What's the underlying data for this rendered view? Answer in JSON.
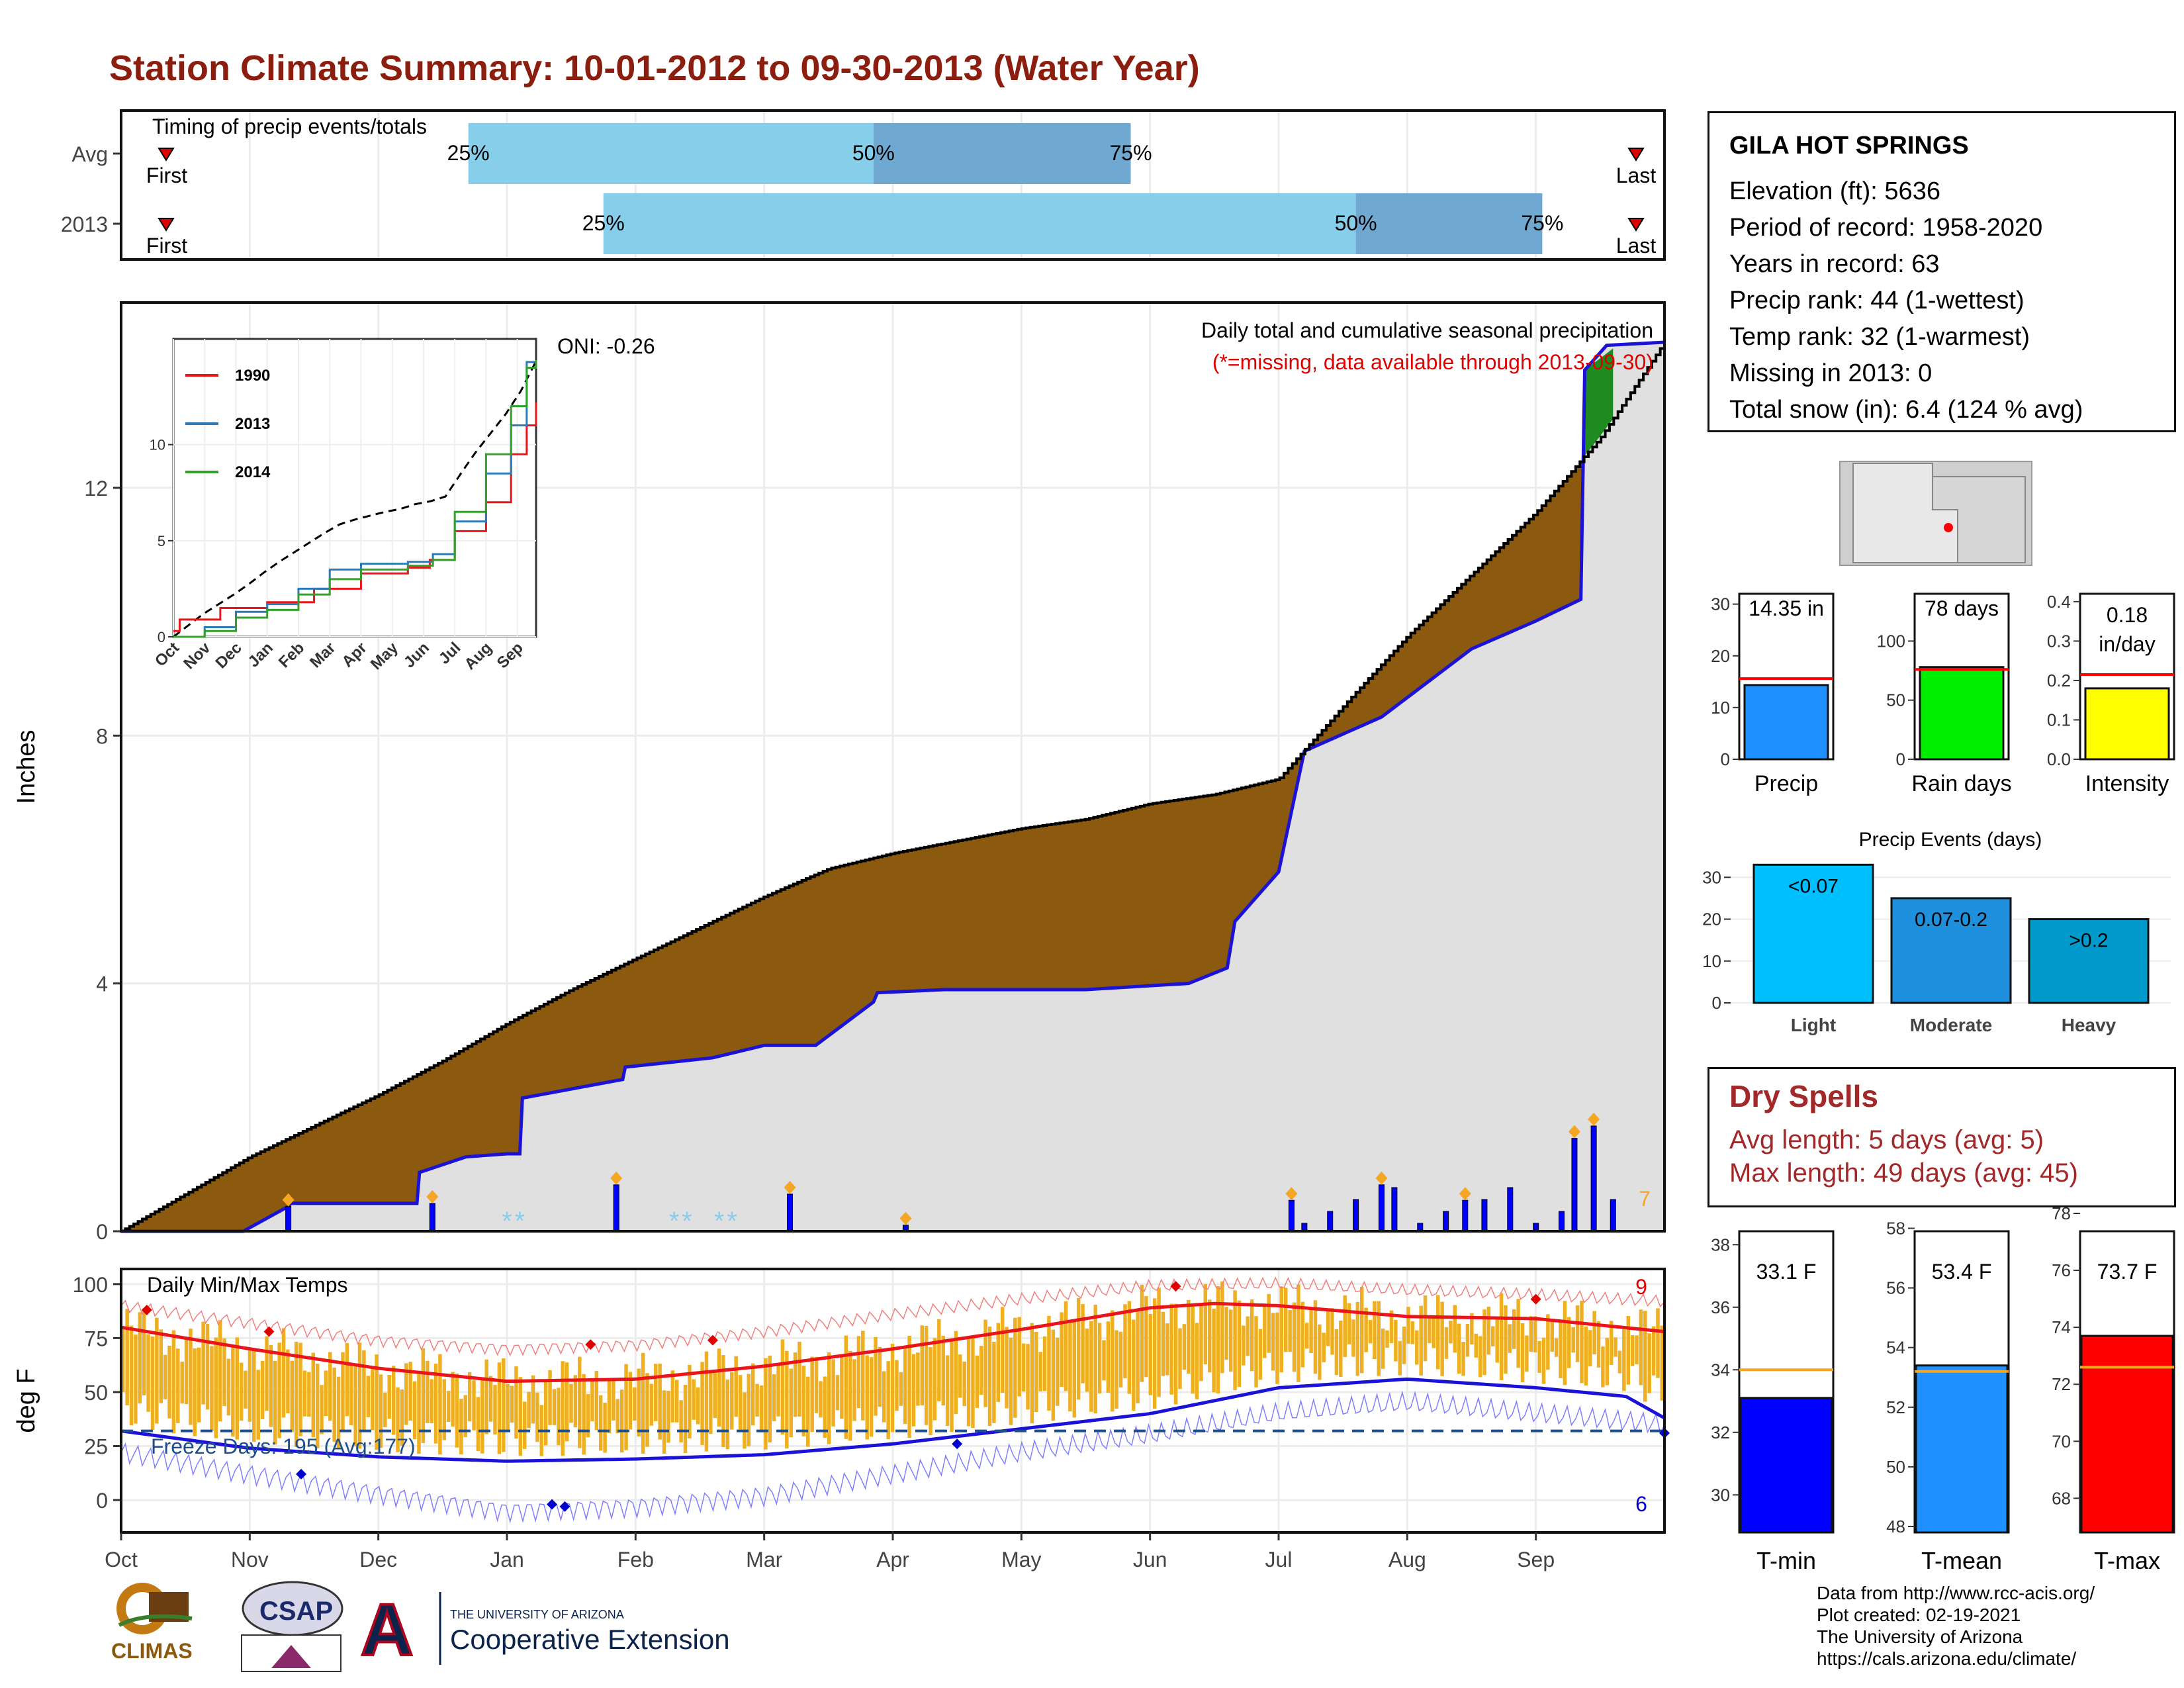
{
  "title": "Station Climate Summary: 10-01-2012 to 09-30-2013 (Water Year)",
  "colors": {
    "title": "#8b1e0f",
    "brown_area": "#8b5a0f",
    "grey_area": "#e0e0e0",
    "cumulative_2013": "#1a12d6",
    "temp_bars": "#eeb021",
    "tmax_line": "#e8161b",
    "tmin_line": "#1a12d6",
    "freeze_line": "#1f4e8c",
    "light_blue": "#87ceeb",
    "mid_blue": "#6fa8d0"
  },
  "timing_panel": {
    "title": "Timing of precip events/totals",
    "rows": [
      {
        "label": "Avg",
        "first": "First",
        "last": "Last",
        "p25": "25%",
        "p50": "50%",
        "p75": "75%",
        "p25_month": 2.7,
        "p50_month": 5.85,
        "p75_month": 7.85
      },
      {
        "label": "2013",
        "first": "First",
        "last": "Last",
        "p25": "25%",
        "p50": "50%",
        "p75": "75%",
        "p25_month": 3.75,
        "p50_month": 9.6,
        "p75_month": 11.05
      }
    ]
  },
  "precip_panel": {
    "ylabel": "Inches",
    "yticks": [
      "0",
      "4",
      "8",
      "12"
    ],
    "header": "Daily total and cumulative seasonal precipitation",
    "missing_note": "(*=missing, data available through 2013-09-30)",
    "oni": "ONI: -0.26",
    "count_label": "7",
    "ymax": 14.35
  },
  "inset": {
    "legend": [
      "1990",
      "2013",
      "2014"
    ],
    "yticks": [
      "0",
      "5",
      "10"
    ],
    "xticks": [
      "Oct",
      "Nov",
      "Dec",
      "Jan",
      "Feb",
      "Mar",
      "Apr",
      "May",
      "Jun",
      "Jul",
      "Aug",
      "Sep"
    ]
  },
  "temp_panel": {
    "ylabel": "deg F",
    "title": "Daily Min/Max Temps",
    "yticks": [
      "0",
      "25",
      "50",
      "75",
      "100"
    ],
    "freeze_text": "Freeze Days: 195 (Avg:177)",
    "top_count": "9",
    "bottom_count": "6",
    "freeze_level": 32
  },
  "x_axis": {
    "months": [
      "Oct",
      "Nov",
      "Dec",
      "Jan",
      "Feb",
      "Mar",
      "Apr",
      "May",
      "Jun",
      "Jul",
      "Aug",
      "Sep"
    ]
  },
  "station": {
    "name": "GILA HOT SPRINGS",
    "elevation": "Elevation (ft): 5636",
    "period": "Period of record: 1958-2020",
    "years": "Years in record: 63",
    "precip_rank": "Precip rank: 44 (1-wettest)",
    "temp_rank": "Temp rank: 32 (1-warmest)",
    "missing": "Missing in 2013: 0",
    "snow": "Total snow (in): 6.4 (124 % avg)"
  },
  "summary_bars": [
    {
      "label": "Precip",
      "value_text": "14.35 in",
      "value": 14.35,
      "avg": 15.6,
      "ymax": 32,
      "ticks": [
        "0",
        "10",
        "20",
        "30"
      ],
      "tick_values": [
        0,
        10,
        20,
        30
      ],
      "color": "#1e90ff"
    },
    {
      "label": "Rain days",
      "value_text": "78 days",
      "value": 78,
      "avg": 76,
      "ymax": 140,
      "ticks": [
        "0",
        "50",
        "100"
      ],
      "tick_values": [
        0,
        50,
        100
      ],
      "color": "#00ee00"
    },
    {
      "label": "Intensity",
      "value_text": "0.18 in/day",
      "value_line1": "0.18",
      "value_line2": "in/day",
      "value": 0.18,
      "avg": 0.215,
      "ymax": 0.42,
      "ticks": [
        "0.0",
        "0.1",
        "0.2",
        "0.3",
        "0.4"
      ],
      "tick_values": [
        0,
        0.1,
        0.2,
        0.3,
        0.4
      ],
      "color": "#ffff00"
    }
  ],
  "precip_events": {
    "title": "Precip Events (days)",
    "yticks": [
      "0",
      "10",
      "20",
      "30"
    ],
    "ytick_values": [
      0,
      10,
      20,
      30
    ],
    "ymax": 34,
    "bars": [
      {
        "category": "Light",
        "label": "<0.07",
        "value": 33,
        "color": "#00bfff"
      },
      {
        "category": "Moderate",
        "label": "0.07-0.2",
        "value": 25,
        "color": "#1e90dd"
      },
      {
        "category": "Heavy",
        "label": ">0.2",
        "value": 20,
        "color": "#009acd"
      }
    ]
  },
  "dry_spells": {
    "title": "Dry Spells",
    "avg": "Avg length: 5 days (avg: 5)",
    "max": "Max length: 49 days (avg: 45)"
  },
  "temp_bars": [
    {
      "label": "T-min",
      "value_text": "33.1 F",
      "value": 33.1,
      "avg": 34.0,
      "ymin": 28.8,
      "ymax": 39,
      "ticks": [
        "30",
        "32",
        "34",
        "36",
        "38"
      ],
      "tick_values": [
        30,
        32,
        34,
        36,
        38
      ],
      "color": "#0000ff"
    },
    {
      "label": "T-mean",
      "value_text": "53.4 F",
      "value": 53.4,
      "avg": 53.2,
      "ymin": 47.8,
      "ymax": 58.5,
      "ticks": [
        "48",
        "50",
        "52",
        "54",
        "56",
        "58"
      ],
      "tick_values": [
        48,
        50,
        52,
        54,
        56,
        58
      ],
      "color": "#1e90ff"
    },
    {
      "label": "T-max",
      "value_text": "73.7 F",
      "value": 73.7,
      "avg": 72.6,
      "ymin": 66.8,
      "ymax": 78,
      "ticks": [
        "68",
        "70",
        "72",
        "74",
        "76",
        "78"
      ],
      "tick_values": [
        68,
        70,
        72,
        74,
        76,
        78
      ],
      "color": "#ff0000"
    }
  ],
  "credits": [
    "Data from http://www.rcc-acis.org/",
    "Plot created: 02-19-2021",
    "The University of Arizona",
    "https://cals.arizona.edu/climate/"
  ],
  "logos": {
    "climas": "CLIMAS",
    "csap": "CSAP",
    "ua_small": "THE UNIVERSITY OF ARIZONA",
    "ua_big": "Cooperative Extension"
  },
  "chart_data": [
    {
      "type": "area",
      "title": "Daily total and cumulative seasonal precipitation",
      "ylabel": "Inches",
      "ylim": [
        0,
        14.35
      ],
      "x_unit": "month index from Oct 1 (0=Oct 1, 12=Sep 30)",
      "series": [
        {
          "name": "avg_cumulative",
          "x": [
            0,
            0.5,
            1,
            1.5,
            2,
            2.5,
            3,
            3.5,
            4,
            4.5,
            5,
            5.5,
            6,
            6.5,
            7,
            7.5,
            8,
            8.5,
            9,
            9.3,
            9.6,
            10,
            10.5,
            11,
            11.5,
            12
          ],
          "y": [
            0,
            0.6,
            1.2,
            1.7,
            2.2,
            2.75,
            3.35,
            3.9,
            4.4,
            4.9,
            5.4,
            5.85,
            6.1,
            6.3,
            6.5,
            6.65,
            6.9,
            7.05,
            7.3,
            8.0,
            8.7,
            9.6,
            10.6,
            11.6,
            12.8,
            14.35
          ]
        },
        {
          "name": "2013_cumulative",
          "x": [
            0,
            0.95,
            1.3,
            1.32,
            2.3,
            2.32,
            2.68,
            3.0,
            3.1,
            3.12,
            3.9,
            3.92,
            4.6,
            5.0,
            5.4,
            5.85,
            5.88,
            6.4,
            6.9,
            7.5,
            8.3,
            8.6,
            8.66,
            9.0,
            9.2,
            9.8,
            10.5,
            11.0,
            11.35,
            11.38,
            11.55,
            12
          ],
          "y": [
            0,
            0,
            0.4,
            0.45,
            0.45,
            0.95,
            1.2,
            1.25,
            1.25,
            2.15,
            2.45,
            2.65,
            2.8,
            3.0,
            3.0,
            3.7,
            3.85,
            3.9,
            3.9,
            3.9,
            4.0,
            4.25,
            5.0,
            5.8,
            7.75,
            8.3,
            9.4,
            9.85,
            10.2,
            13.9,
            14.3,
            14.35
          ]
        }
      ],
      "daily_events": [
        {
          "x": 1.3,
          "y": 0.4
        },
        {
          "x": 2.42,
          "y": 0.45
        },
        {
          "x": 3.85,
          "y": 0.75
        },
        {
          "x": 5.2,
          "y": 0.6
        },
        {
          "x": 6.1,
          "y": 0.1
        },
        {
          "x": 9.1,
          "y": 0.5
        },
        {
          "x": 9.8,
          "y": 0.75
        },
        {
          "x": 10.45,
          "y": 0.5
        },
        {
          "x": 11.3,
          "y": 1.5
        },
        {
          "x": 11.45,
          "y": 1.7
        }
      ]
    },
    {
      "type": "line",
      "title": "Daily Min/Max Temps",
      "ylabel": "deg F",
      "ylim": [
        -15,
        107
      ],
      "x_unit": "month index from Oct 1",
      "series": [
        {
          "name": "avg_max",
          "x": [
            0,
            1,
            2,
            3,
            4,
            5,
            6,
            7,
            8,
            8.5,
            9,
            10,
            11,
            12
          ],
          "y": [
            80,
            70,
            61,
            55,
            56,
            62,
            70,
            79,
            89,
            91,
            90,
            85,
            84,
            78
          ]
        },
        {
          "name": "avg_min",
          "x": [
            0,
            1,
            2,
            3,
            4,
            5,
            6,
            7,
            8,
            9,
            10,
            11,
            11.7,
            12
          ],
          "y": [
            32,
            24,
            20,
            18,
            19,
            21,
            26,
            33,
            40,
            52,
            56,
            52,
            48,
            38
          ]
        },
        {
          "name": "record_max",
          "x": [
            0,
            1,
            2,
            3,
            4,
            5,
            6,
            7,
            8,
            9,
            10,
            11,
            12
          ],
          "y": [
            90,
            82,
            74,
            70,
            72,
            78,
            86,
            93,
            99,
            100,
            97,
            95,
            92
          ]
        },
        {
          "name": "record_min",
          "x": [
            0,
            1,
            2,
            3,
            4,
            5,
            6,
            7,
            8,
            9,
            10,
            11,
            12
          ],
          "y": [
            22,
            12,
            3,
            -5,
            -3,
            2,
            12,
            22,
            30,
            40,
            45,
            40,
            35
          ]
        }
      ],
      "freeze_days": 195,
      "freeze_days_avg": 177
    },
    {
      "type": "bar",
      "categories": [
        "Precip",
        "Rain days",
        "Intensity"
      ],
      "values": [
        14.35,
        78,
        0.18
      ]
    },
    {
      "type": "bar",
      "title": "Precip Events (days)",
      "categories": [
        "Light",
        "Moderate",
        "Heavy"
      ],
      "values": [
        33,
        25,
        20
      ]
    },
    {
      "type": "bar",
      "categories": [
        "T-min",
        "T-mean",
        "T-max"
      ],
      "values": [
        33.1,
        53.4,
        73.7
      ]
    }
  ]
}
